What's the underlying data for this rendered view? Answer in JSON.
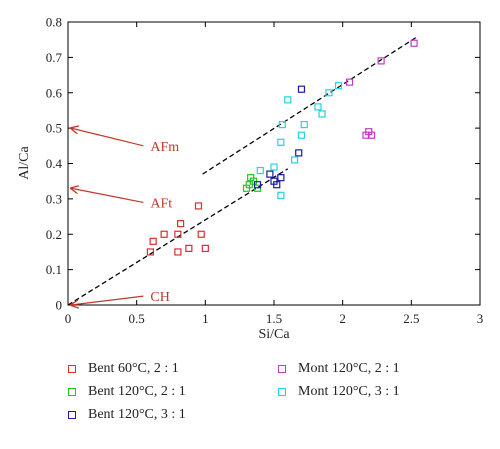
{
  "chart_data": {
    "type": "scatter",
    "xlabel": "Si/Ca",
    "ylabel": "Al/Ca",
    "xlim": [
      0,
      3
    ],
    "ylim": [
      0,
      0.8
    ],
    "x_ticks": [
      0,
      0.5,
      1,
      1.5,
      2,
      2.5,
      3
    ],
    "x_tick_labels": [
      "0",
      "0.5",
      "1",
      "1.5",
      "2",
      "2.5",
      "3"
    ],
    "y_ticks": [
      0,
      0.1,
      0.2,
      0.3,
      0.4,
      0.5,
      0.6,
      0.7,
      0.8
    ],
    "y_tick_labels": [
      "0",
      "0.1",
      "0.2",
      "0.3",
      "0.4",
      "0.5",
      "0.6",
      "0.7",
      "0.8"
    ],
    "grid": false,
    "legend_position": "bottom",
    "series": [
      {
        "name": "Bent 60°C, 2 : 1",
        "color": "#d9302c",
        "marker": "square-open",
        "points": [
          [
            0.6,
            0.15
          ],
          [
            0.62,
            0.18
          ],
          [
            0.7,
            0.2
          ],
          [
            0.8,
            0.2
          ],
          [
            0.82,
            0.23
          ],
          [
            0.8,
            0.15
          ],
          [
            0.88,
            0.16
          ],
          [
            0.95,
            0.28
          ],
          [
            0.97,
            0.2
          ],
          [
            1.0,
            0.16
          ]
        ]
      },
      {
        "name": "Bent 120°C, 2 : 1",
        "color": "#22c722",
        "marker": "square-open",
        "points": [
          [
            1.3,
            0.33
          ],
          [
            1.32,
            0.34
          ],
          [
            1.33,
            0.36
          ],
          [
            1.35,
            0.35
          ],
          [
            1.38,
            0.33
          ]
        ]
      },
      {
        "name": "Bent 120°C, 3 : 1",
        "color": "#1a1aa6",
        "marker": "square-open",
        "points": [
          [
            1.38,
            0.34
          ],
          [
            1.47,
            0.37
          ],
          [
            1.5,
            0.35
          ],
          [
            1.52,
            0.34
          ],
          [
            1.55,
            0.36
          ],
          [
            1.68,
            0.43
          ],
          [
            1.7,
            0.61
          ]
        ]
      },
      {
        "name": "Mont 120°C, 2 : 1",
        "color": "#c23cc2",
        "marker": "square-open",
        "points": [
          [
            2.05,
            0.63
          ],
          [
            2.17,
            0.48
          ],
          [
            2.19,
            0.49
          ],
          [
            2.21,
            0.48
          ],
          [
            2.28,
            0.69
          ],
          [
            2.52,
            0.74
          ]
        ]
      },
      {
        "name": "Mont 120°C, 3 : 1",
        "color": "#22d4e0",
        "marker": "square-open",
        "points": [
          [
            1.4,
            0.38
          ],
          [
            1.5,
            0.39
          ],
          [
            1.55,
            0.46
          ],
          [
            1.56,
            0.51
          ],
          [
            1.55,
            0.31
          ],
          [
            1.6,
            0.58
          ],
          [
            1.65,
            0.41
          ],
          [
            1.7,
            0.48
          ],
          [
            1.72,
            0.51
          ],
          [
            1.82,
            0.56
          ],
          [
            1.85,
            0.54
          ],
          [
            1.9,
            0.6
          ],
          [
            1.97,
            0.62
          ]
        ]
      }
    ],
    "trend_lines": [
      {
        "style": "dashed",
        "color": "#000000",
        "from": [
          0,
          0
        ],
        "to": [
          1.6,
          0.385
        ]
      },
      {
        "style": "dashed",
        "color": "#000000",
        "from": [
          0.98,
          0.37
        ],
        "to": [
          2.55,
          0.76
        ]
      }
    ],
    "annotations": [
      {
        "text": "AFm",
        "target": [
          0,
          0.5
        ],
        "label_at": [
          0.6,
          0.45
        ]
      },
      {
        "text": "AFt",
        "target": [
          0,
          0.33
        ],
        "label_at": [
          0.6,
          0.29
        ]
      },
      {
        "text": "CH",
        "target": [
          0,
          0
        ],
        "label_at": [
          0.6,
          0.025
        ]
      }
    ]
  }
}
